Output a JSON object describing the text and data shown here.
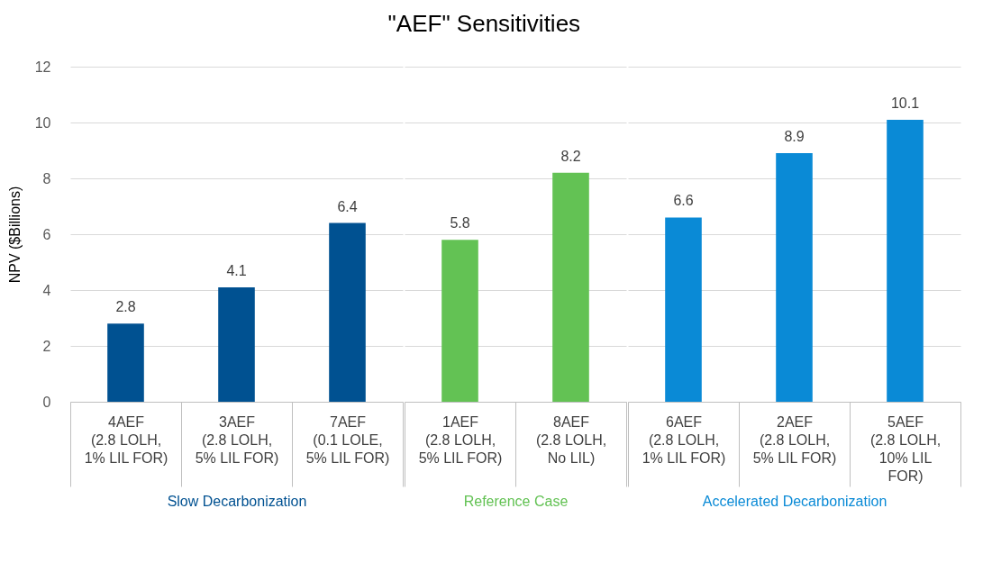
{
  "chart_data": {
    "type": "bar",
    "title": "\"AEF\" Sensitivities",
    "ylabel": "NPV ($Billions)",
    "categories": [
      "4AEF\n(2.8 LOLH,\n1% LIL FOR)",
      "3AEF\n(2.8 LOLH,\n5% LIL FOR)",
      "7AEF\n(0.1 LOLE,\n5% LIL FOR)",
      "1AEF\n(2.8 LOLH,\n5% LIL FOR)",
      "8AEF\n(2.8 LOLH,\nNo LIL)",
      "6AEF\n(2.8 LOLH,\n1% LIL FOR)",
      "2AEF\n(2.8 LOLH,\n5% LIL FOR)",
      "5AEF\n(2.8 LOLH,\n10% LIL\nFOR)"
    ],
    "series": [
      {
        "name": "Slow Decarbonization",
        "color": "#005191",
        "values": [
          2.8,
          4.1,
          6.4,
          null,
          null,
          null,
          null,
          null
        ]
      },
      {
        "name": "Reference Case",
        "color": "#63c254",
        "values": [
          null,
          null,
          null,
          5.8,
          8.2,
          null,
          null,
          null
        ]
      },
      {
        "name": "Accelerated Decarbonization",
        "color": "#0a8ad6",
        "values": [
          null,
          null,
          null,
          null,
          null,
          6.6,
          8.9,
          10.1
        ]
      }
    ],
    "ylim": [
      0,
      12
    ],
    "yticks": [
      0,
      2,
      4,
      6,
      8,
      10,
      12
    ],
    "grid": "y",
    "data_labels": true,
    "legend": false
  }
}
